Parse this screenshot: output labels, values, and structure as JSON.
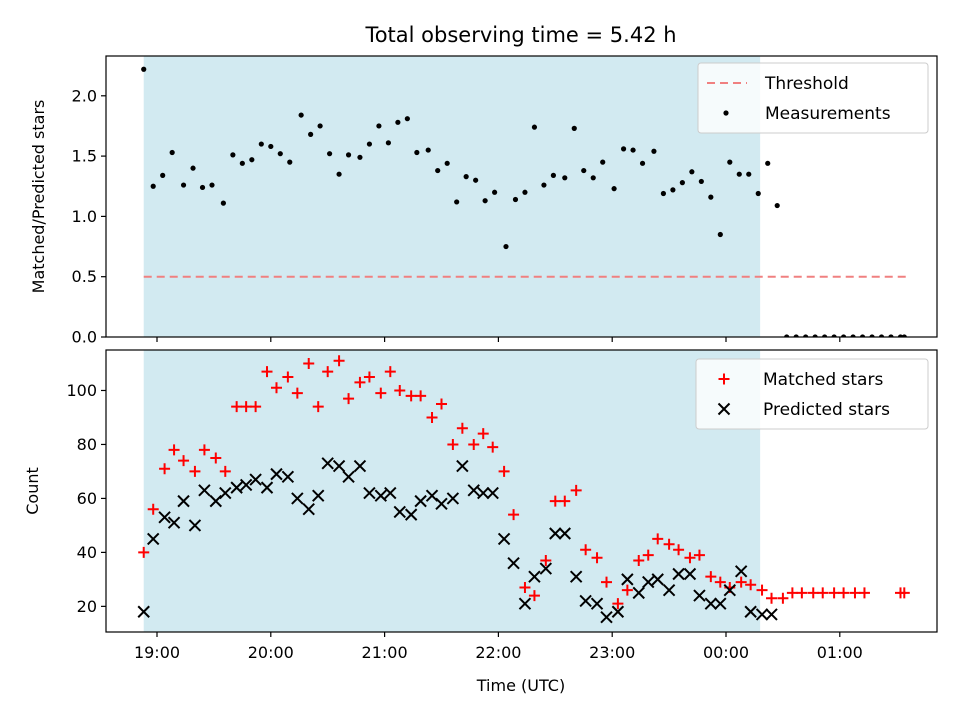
{
  "chart_data": {
    "title": "Total observing time = 5.42 h",
    "xlabel": "Time (UTC)",
    "x_tick_labels": [
      "19:00",
      "20:00",
      "21:00",
      "22:00",
      "23:00",
      "00:00",
      "01:00"
    ],
    "shaded_interval": [
      "18:53",
      "00:18"
    ],
    "colors": {
      "shade": "#add8e6",
      "threshold": "#f08080",
      "measurements": "#000000",
      "matched": "#ff0000",
      "predicted": "#000000"
    },
    "panels": [
      {
        "id": "ratio",
        "type": "scatter",
        "ylabel": "Matched/Predicted stars",
        "ylim": [
          0,
          2.33
        ],
        "yticks": [
          0.0,
          0.5,
          1.0,
          1.5,
          2.0
        ],
        "ytick_labels": [
          "0.0",
          "0.5",
          "1.0",
          "1.5",
          "2.0"
        ],
        "legend": {
          "position": "upper right",
          "entries": [
            "Threshold",
            "Measurements"
          ]
        },
        "threshold": {
          "name": "Threshold",
          "y": 0.5,
          "x_start": "18:53",
          "x_end": "01:36"
        },
        "series": [
          {
            "name": "Measurements",
            "marker": "dot",
            "x": [
              "18:53",
              "18:58",
              "19:03",
              "19:08",
              "19:14",
              "19:19",
              "19:24",
              "19:29",
              "19:35",
              "19:40",
              "19:45",
              "19:50",
              "19:55",
              "20:00",
              "20:05",
              "20:10",
              "20:16",
              "20:21",
              "20:26",
              "20:31",
              "20:36",
              "20:41",
              "20:47",
              "20:52",
              "20:57",
              "21:02",
              "21:07",
              "21:12",
              "21:17",
              "21:23",
              "21:28",
              "21:33",
              "21:38",
              "21:43",
              "21:48",
              "21:53",
              "21:58",
              "22:04",
              "22:09",
              "22:14",
              "22:19",
              "22:24",
              "22:29",
              "22:35",
              "22:40",
              "22:45",
              "22:50",
              "22:55",
              "23:01",
              "23:06",
              "23:11",
              "23:16",
              "23:22",
              "23:27",
              "23:32",
              "23:37",
              "23:42",
              "23:47",
              "23:52",
              "23:57",
              "00:02",
              "00:07",
              "00:12",
              "00:17",
              "00:22",
              "00:27",
              "00:32",
              "00:37",
              "00:42",
              "00:47",
              "00:52",
              "00:57",
              "01:02",
              "01:07",
              "01:12",
              "01:17",
              "01:22",
              "01:27",
              "01:32",
              "01:34"
            ],
            "y": [
              2.22,
              1.25,
              1.34,
              1.53,
              1.26,
              1.4,
              1.24,
              1.26,
              1.11,
              1.51,
              1.44,
              1.47,
              1.6,
              1.58,
              1.52,
              1.45,
              1.84,
              1.68,
              1.75,
              1.52,
              1.35,
              1.51,
              1.49,
              1.6,
              1.75,
              1.61,
              1.78,
              1.81,
              1.53,
              1.55,
              1.38,
              1.44,
              1.12,
              1.33,
              1.3,
              1.13,
              1.2,
              0.75,
              1.14,
              1.2,
              1.74,
              1.26,
              1.34,
              1.32,
              1.73,
              1.38,
              1.32,
              1.45,
              1.23,
              1.56,
              1.55,
              1.44,
              1.54,
              1.19,
              1.22,
              1.28,
              1.37,
              1.29,
              1.16,
              0.85,
              1.45,
              1.35,
              1.35,
              1.19,
              1.44,
              1.09,
              0,
              0,
              0,
              0,
              0,
              0,
              0,
              0,
              0,
              0,
              0,
              0,
              0,
              0
            ]
          }
        ]
      },
      {
        "id": "count",
        "type": "scatter",
        "ylabel": "Count",
        "ylim": [
          10.5,
          115
        ],
        "yticks": [
          20,
          40,
          60,
          80,
          100
        ],
        "ytick_labels": [
          "20",
          "40",
          "60",
          "80",
          "100"
        ],
        "legend": {
          "position": "upper right",
          "entries": [
            "Matched stars",
            "Predicted stars"
          ]
        },
        "series": [
          {
            "name": "Matched stars",
            "marker": "plus",
            "x": [
              "18:53",
              "18:58",
              "19:04",
              "19:09",
              "19:14",
              "19:20",
              "19:25",
              "19:31",
              "19:36",
              "19:42",
              "19:47",
              "19:52",
              "19:58",
              "20:03",
              "20:09",
              "20:14",
              "20:20",
              "20:25",
              "20:30",
              "20:36",
              "20:41",
              "20:47",
              "20:52",
              "20:58",
              "21:03",
              "21:08",
              "21:14",
              "21:19",
              "21:25",
              "21:30",
              "21:36",
              "21:41",
              "21:47",
              "21:52",
              "21:57",
              "22:03",
              "22:08",
              "22:14",
              "22:19",
              "22:25",
              "22:30",
              "22:35",
              "22:41",
              "22:46",
              "22:52",
              "22:57",
              "23:03",
              "23:08",
              "23:14",
              "23:19",
              "23:24",
              "23:30",
              "23:35",
              "23:41",
              "23:46",
              "23:52",
              "23:57",
              "00:02",
              "00:08",
              "00:13",
              "00:19",
              "00:24",
              "00:30",
              "00:35",
              "00:40",
              "00:46",
              "00:51",
              "00:57",
              "01:02",
              "01:08",
              "01:13",
              "01:32",
              "01:34"
            ],
            "y": [
              40,
              56,
              71,
              78,
              74,
              70,
              78,
              75,
              70,
              94,
              94,
              94,
              107,
              101,
              105,
              99,
              110,
              94,
              107,
              111,
              97,
              103,
              105,
              99,
              107,
              100,
              98,
              98,
              90,
              95,
              80,
              86,
              80,
              84,
              79,
              70,
              54,
              27,
              24,
              37,
              59,
              59,
              63,
              41,
              38,
              29,
              21,
              26,
              37,
              39,
              45,
              43,
              41,
              38,
              39,
              31,
              29,
              27,
              29,
              28,
              26,
              23,
              23,
              25,
              25,
              25,
              25,
              25,
              25,
              25,
              25,
              25,
              25
            ]
          },
          {
            "name": "Predicted stars",
            "marker": "x",
            "x": [
              "18:53",
              "18:58",
              "19:04",
              "19:09",
              "19:14",
              "19:20",
              "19:25",
              "19:31",
              "19:36",
              "19:42",
              "19:47",
              "19:52",
              "19:58",
              "20:03",
              "20:09",
              "20:14",
              "20:20",
              "20:25",
              "20:30",
              "20:36",
              "20:41",
              "20:47",
              "20:52",
              "20:58",
              "21:03",
              "21:08",
              "21:14",
              "21:19",
              "21:25",
              "21:30",
              "21:36",
              "21:41",
              "21:47",
              "21:52",
              "21:57",
              "22:03",
              "22:08",
              "22:14",
              "22:19",
              "22:25",
              "22:30",
              "22:35",
              "22:41",
              "22:46",
              "22:52",
              "22:57",
              "23:03",
              "23:08",
              "23:14",
              "23:19",
              "23:24",
              "23:30",
              "23:35",
              "23:41",
              "23:46",
              "23:52",
              "23:57",
              "00:02",
              "00:08",
              "00:13",
              "00:19",
              "00:24"
            ],
            "y": [
              18,
              45,
              53,
              51,
              59,
              50,
              63,
              59,
              62,
              64,
              65,
              67,
              64,
              69,
              68,
              60,
              56,
              61,
              73,
              72,
              68,
              72,
              62,
              61,
              62,
              55,
              54,
              59,
              61,
              58,
              60,
              72,
              63,
              62,
              62,
              45,
              36,
              21,
              31,
              34,
              47,
              47,
              31,
              22,
              21,
              16,
              18,
              30,
              25,
              29,
              30,
              26,
              32,
              32,
              24,
              21,
              21,
              26,
              33,
              18,
              17,
              17
            ]
          }
        ]
      }
    ]
  }
}
